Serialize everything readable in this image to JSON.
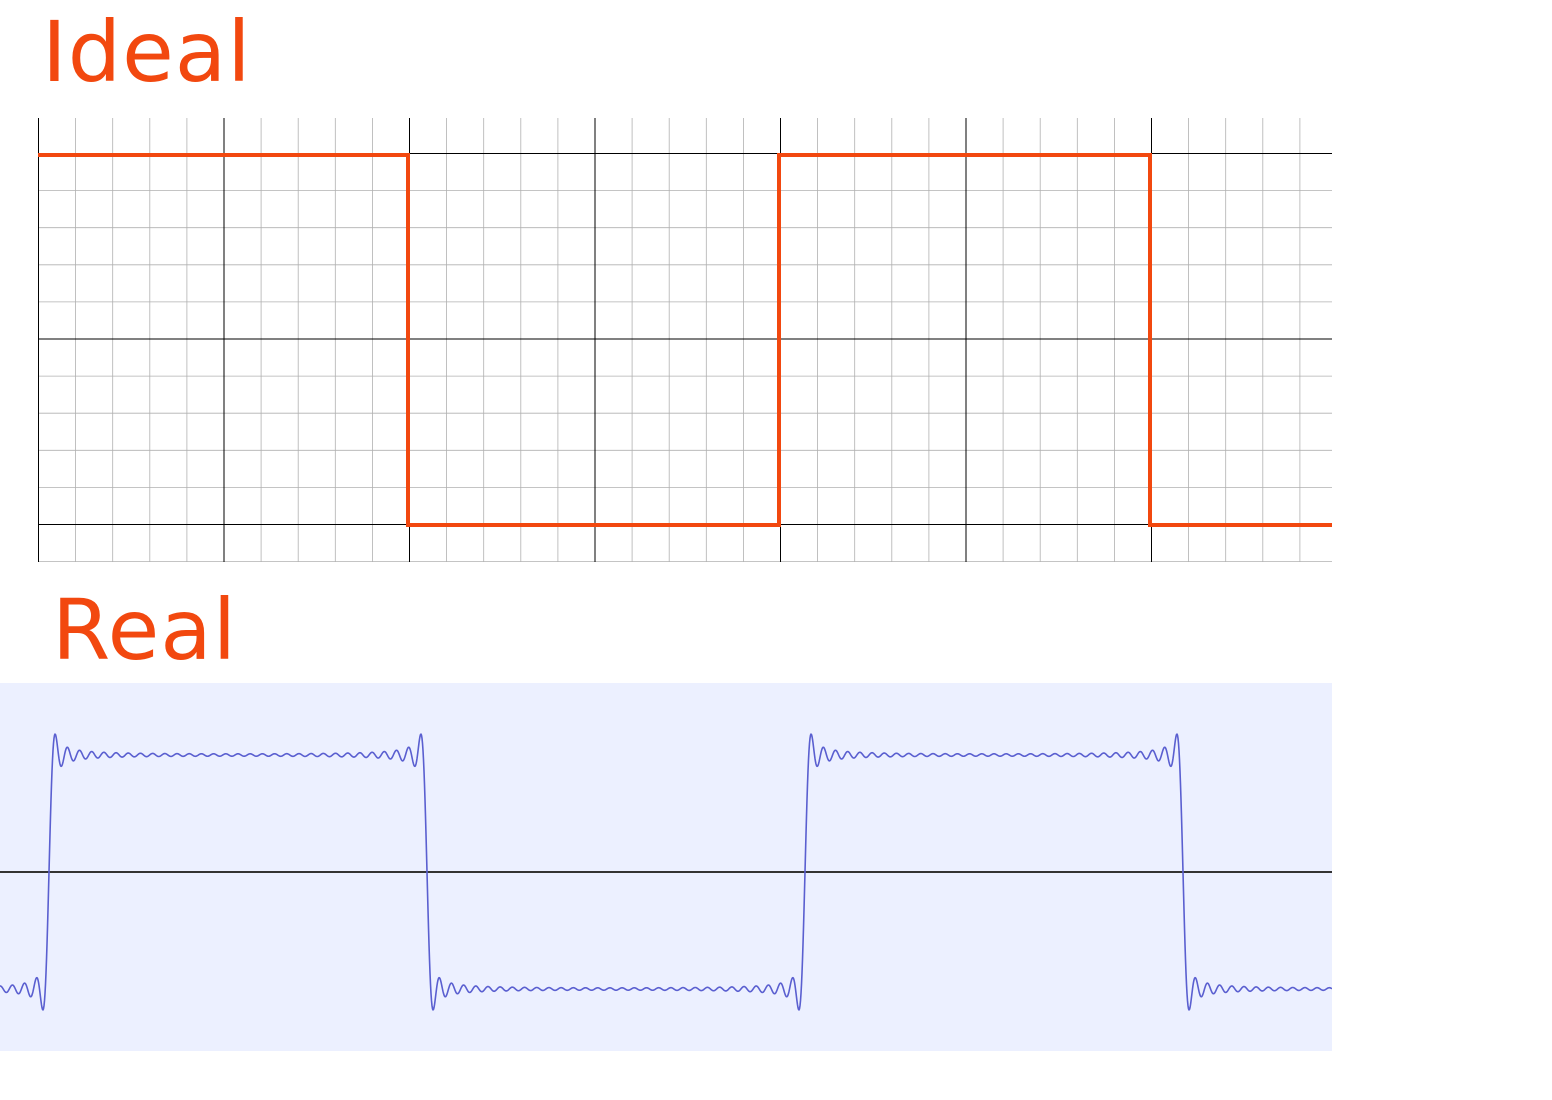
{
  "ideal": {
    "label": "Ideal",
    "label_color": "#f2480f",
    "trace_color": "#f2480f",
    "grid_major_color": "#000000",
    "grid_minor_color": "#b0b0b0",
    "grid": true
  },
  "real": {
    "label": "Real",
    "label_color": "#f2480f",
    "background_color": "#ecf0ff",
    "trace_color": "#5a5fd0",
    "axis_color": "#333333"
  },
  "waveform": {
    "type": "square",
    "duty_cycle": 0.5,
    "cycles_visible": 1.75
  }
}
